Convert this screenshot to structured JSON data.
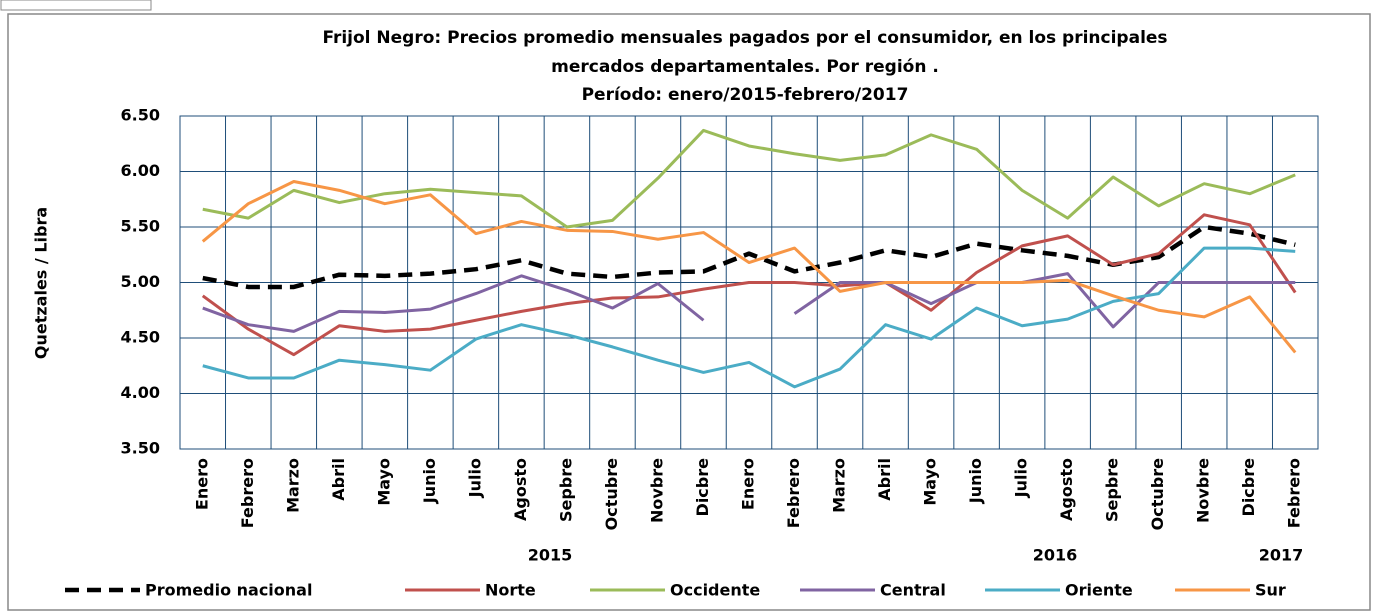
{
  "chart_data": {
    "type": "line",
    "title": [
      "Frijol Negro: Precios promedio mensuales pagados por el consumidor, en los principales",
      "mercados departamentales.  Por región .",
      "Período: enero/2015-febrero/2017"
    ],
    "y_label": "Quetzales / Libra",
    "categories": [
      "Enero",
      "Febrero",
      "Marzo",
      "Abril",
      "Mayo",
      "Junio",
      "Julio",
      "Agosto",
      "Sepbre",
      "Octubre",
      "Novbre",
      "Dicbre",
      "Enero",
      "Febrero",
      "Marzo",
      "Abril",
      "Mayo",
      "Junio",
      "Julio",
      "Agosto",
      "Sepbre",
      "Octubre",
      "Novbre",
      "Dicbre",
      "Febrero"
    ],
    "group_labels": [
      "2015",
      "2016",
      "2017"
    ],
    "ylim": [
      3.5,
      6.5
    ],
    "yticks": [
      {
        "value": 3.5,
        "label": "3.50"
      },
      {
        "value": 4.0,
        "label": "4.00"
      },
      {
        "value": 4.5,
        "label": "4.50"
      },
      {
        "value": 5.0,
        "label": "5.00"
      },
      {
        "value": 5.5,
        "label": "5.50"
      },
      {
        "value": 6.0,
        "label": "6.00"
      },
      {
        "value": 6.5,
        "label": "6.50"
      }
    ],
    "grid": true,
    "legend": "bottom",
    "series": [
      {
        "name": "Promedio nacional",
        "color": "#000000",
        "dashed": true,
        "values": [
          5.04,
          4.96,
          4.96,
          5.07,
          5.06,
          5.08,
          5.12,
          5.2,
          5.08,
          5.05,
          5.09,
          5.1,
          5.26,
          5.1,
          5.18,
          5.29,
          5.23,
          5.35,
          5.29,
          5.24,
          5.16,
          5.23,
          5.5,
          5.44,
          5.34
        ]
      },
      {
        "name": "Norte",
        "color": "#c0504d",
        "values": [
          4.88,
          4.58,
          4.35,
          4.61,
          4.56,
          4.58,
          4.66,
          4.74,
          4.81,
          4.86,
          4.87,
          4.94,
          5.0,
          5.0,
          4.97,
          5.0,
          4.75,
          5.09,
          5.33,
          5.42,
          5.16,
          5.26,
          5.61,
          5.52,
          4.91
        ]
      },
      {
        "name": "Occidente",
        "color": "#9bbb59",
        "values": [
          5.66,
          5.58,
          5.83,
          5.72,
          5.8,
          5.84,
          5.81,
          5.78,
          5.5,
          5.56,
          5.94,
          6.37,
          6.23,
          6.16,
          6.1,
          6.15,
          6.33,
          6.2,
          5.83,
          5.58,
          5.95,
          5.69,
          5.89,
          5.8,
          5.97
        ]
      },
      {
        "name": "Central",
        "color": "#8064a2",
        "values": [
          4.77,
          4.62,
          4.56,
          4.74,
          4.73,
          4.76,
          4.9,
          5.06,
          4.93,
          4.77,
          4.99,
          4.66,
          null,
          4.72,
          5.0,
          5.0,
          4.81,
          5.0,
          5.0,
          5.08,
          4.6,
          5.0,
          5.0,
          5.0,
          5.0
        ]
      },
      {
        "name": "Oriente",
        "color": "#4bacc6",
        "values": [
          4.25,
          4.14,
          4.14,
          4.3,
          4.26,
          4.21,
          4.49,
          4.62,
          4.53,
          4.42,
          4.3,
          4.19,
          4.28,
          4.06,
          4.22,
          4.62,
          4.49,
          4.77,
          4.61,
          4.67,
          4.83,
          4.9,
          5.31,
          5.31,
          5.28
        ]
      },
      {
        "name": "Sur",
        "color": "#f79646",
        "values": [
          5.37,
          5.71,
          5.91,
          5.83,
          5.71,
          5.79,
          5.44,
          5.55,
          5.47,
          5.46,
          5.39,
          5.45,
          5.18,
          5.31,
          4.92,
          5.0,
          5.0,
          5.0,
          5.0,
          5.02,
          4.88,
          4.75,
          4.69,
          4.87,
          4.37
        ]
      }
    ]
  }
}
